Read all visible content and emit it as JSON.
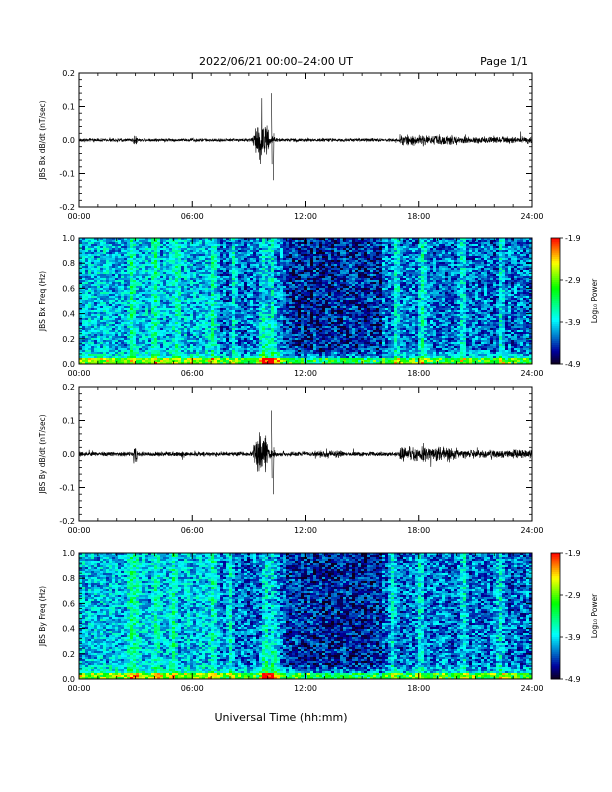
{
  "header": {
    "title": "2022/06/21  00:00–24:00 UT",
    "page": "Page 1/1"
  },
  "footer": {
    "xlabel": "Universal Time (hh:mm)"
  },
  "chart_data": [
    {
      "type": "line",
      "ylabel": "JBS Bx dB/dt (nT/sec)",
      "xlim": [
        0,
        24
      ],
      "ylim": [
        -0.2,
        0.2
      ],
      "yticks": [
        "0.2",
        "0.1",
        "0.0",
        "-0.1",
        "-0.2"
      ],
      "x_tick_labels": [
        "00:00",
        "06:00",
        "12:00",
        "18:00",
        "24:00"
      ],
      "trace": {
        "baseline_amplitude": 0.006,
        "activity": [
          {
            "x": [
              0.0,
              24.0
            ],
            "amp": 0.006
          },
          {
            "x": [
              2.9,
              3.1
            ],
            "amp": 0.02
          },
          {
            "x": [
              9.2,
              10.4
            ],
            "amp": 0.08
          },
          {
            "x": [
              12.5,
              15.0
            ],
            "amp": 0.006
          },
          {
            "x": [
              17.0,
              20.0
            ],
            "amp": 0.018
          },
          {
            "x": [
              20.0,
              24.0
            ],
            "amp": 0.012
          }
        ],
        "max": 0.14,
        "min": -0.12
      },
      "color": "#000000"
    },
    {
      "type": "heatmap",
      "ylabel": "JBS Bx Freq (Hz)",
      "xlim": [
        0,
        24
      ],
      "ylim": [
        0.0,
        1.0
      ],
      "yticks": [
        "1.0",
        "0.8",
        "0.6",
        "0.4",
        "0.2",
        "0.0"
      ],
      "x_tick_labels": [
        "00:00",
        "06:00",
        "12:00",
        "18:00",
        "24:00"
      ],
      "colorbar": {
        "label": "Log₁₀ Power",
        "ticks": [
          "-1.9",
          "-2.9",
          "-3.9",
          "-4.9"
        ],
        "range": [
          -4.9,
          -1.9
        ]
      },
      "bright_bands_hours": [
        2.8,
        4.0,
        5.2,
        7.1,
        8.2,
        9.8,
        10.2,
        16.8,
        18.2,
        20.3,
        22.4
      ],
      "low_frequency_activity": "strong below 0.05 Hz all day"
    },
    {
      "type": "line",
      "ylabel": "JBS By dB/dt (nT/sec)",
      "xlim": [
        0,
        24
      ],
      "ylim": [
        -0.2,
        0.2
      ],
      "yticks": [
        "0.2",
        "0.1",
        "0.0",
        "-0.1",
        "-0.2"
      ],
      "x_tick_labels": [
        "00:00",
        "06:00",
        "12:00",
        "18:00",
        "24:00"
      ],
      "trace": {
        "baseline_amplitude": 0.008,
        "activity": [
          {
            "x": [
              0.0,
              24.0
            ],
            "amp": 0.008
          },
          {
            "x": [
              2.9,
              3.1
            ],
            "amp": 0.04
          },
          {
            "x": [
              9.2,
              10.4
            ],
            "amp": 0.08
          },
          {
            "x": [
              12.5,
              14.0
            ],
            "amp": 0.012
          },
          {
            "x": [
              17.0,
              20.0
            ],
            "amp": 0.025
          },
          {
            "x": [
              20.0,
              24.0
            ],
            "amp": 0.015
          }
        ],
        "max": 0.13,
        "min": -0.12
      },
      "color": "#000000"
    },
    {
      "type": "heatmap",
      "ylabel": "JBS By Freq (Hz)",
      "xlim": [
        0,
        24
      ],
      "ylim": [
        0.0,
        1.0
      ],
      "yticks": [
        "1.0",
        "0.8",
        "0.6",
        "0.4",
        "0.2",
        "0.0"
      ],
      "x_tick_labels": [
        "00:00",
        "06:00",
        "12:00",
        "18:00",
        "24:00"
      ],
      "colorbar": {
        "label": "Log₁₀ Power",
        "ticks": [
          "-1.9",
          "-2.9",
          "-3.9",
          "-4.9"
        ],
        "range": [
          -4.9,
          -1.9
        ]
      },
      "bright_bands_hours": [
        2.7,
        3.0,
        4.1,
        5.0,
        7.1,
        8.0,
        9.9,
        10.3,
        16.6,
        18.1,
        20.4,
        22.3
      ],
      "low_frequency_activity": "strong below 0.1 Hz, peak near 10:00"
    }
  ]
}
